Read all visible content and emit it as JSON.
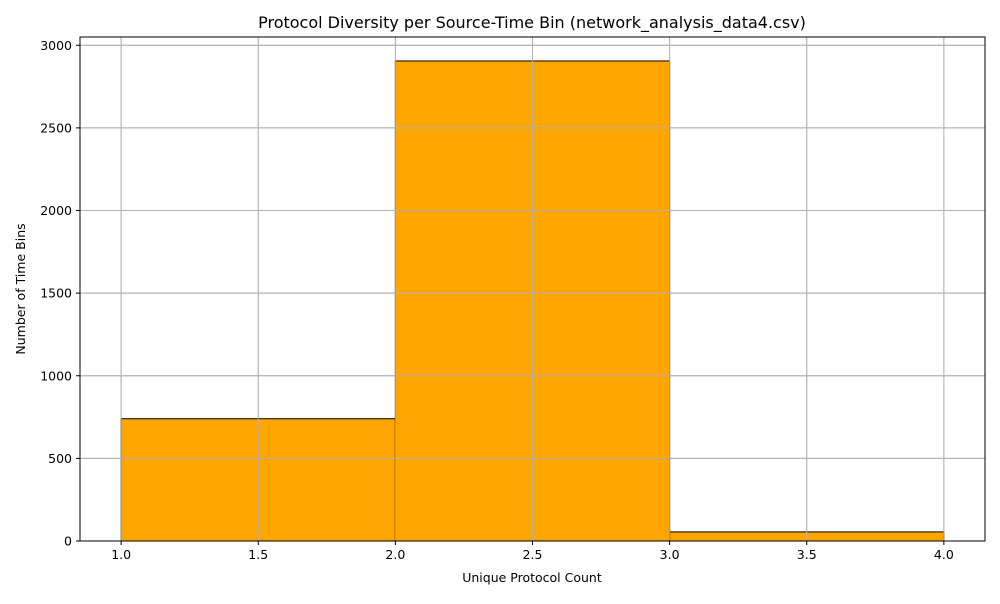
{
  "chart_data": {
    "type": "bar",
    "title": "Protocol Diversity per Source-Time Bin (network_analysis_data4.csv)",
    "xlabel": "Unique Protocol Count",
    "ylabel": "Number of Time Bins",
    "bins": [
      {
        "x0": 1.0,
        "x1": 2.0,
        "value": 740
      },
      {
        "x0": 2.0,
        "x1": 3.0,
        "value": 2905
      },
      {
        "x0": 3.0,
        "x1": 4.0,
        "value": 55
      }
    ],
    "xlim": [
      0.85,
      4.15
    ],
    "ylim": [
      0,
      3050
    ],
    "xticks": [
      1.0,
      1.5,
      2.0,
      2.5,
      3.0,
      3.5,
      4.0
    ],
    "xtick_labels": [
      "1.0",
      "1.5",
      "2.0",
      "2.5",
      "3.0",
      "3.5",
      "4.0"
    ],
    "yticks": [
      0,
      500,
      1000,
      1500,
      2000,
      2500,
      3000
    ],
    "ytick_labels": [
      "0",
      "500",
      "1000",
      "1500",
      "2000",
      "2500",
      "3000"
    ],
    "grid": true,
    "colors": {
      "bar_fill": "#FFA500",
      "bar_edge": "#000000",
      "grid": "#b0b0b0",
      "axes": "#000000"
    }
  }
}
